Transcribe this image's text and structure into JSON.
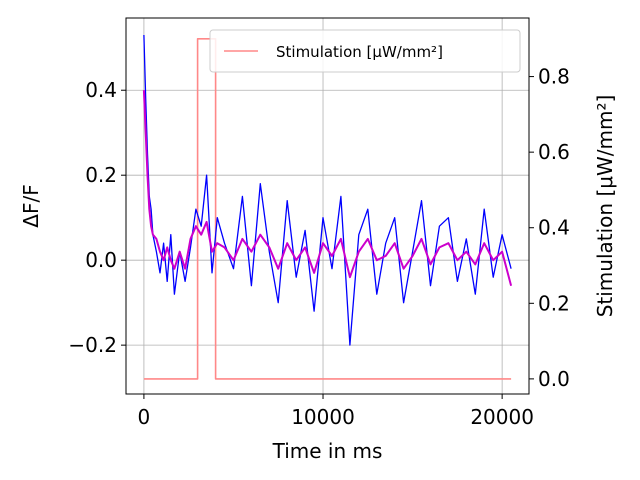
{
  "chart_data": {
    "type": "line",
    "xlabel": "Time in ms",
    "ylabel_left": "ΔF/F",
    "ylabel_right": "Stimulation [μW/mm²]",
    "xlim": [
      -1000,
      21500
    ],
    "ylim_left": [
      -0.315,
      0.57
    ],
    "ylim_right": [
      -0.04,
      0.955
    ],
    "x_ticks": [
      0,
      10000,
      20000
    ],
    "x_tick_labels": [
      "0",
      "10000",
      "20000"
    ],
    "y_left_ticks": [
      -0.2,
      0.0,
      0.2,
      0.4
    ],
    "y_left_tick_labels": [
      "−0.2",
      "0.0",
      "0.2",
      "0.4"
    ],
    "y_right_ticks": [
      0.0,
      0.2,
      0.4,
      0.6,
      0.8
    ],
    "y_right_tick_labels": [
      "0.0",
      "0.2",
      "0.4",
      "0.6",
      "0.8"
    ],
    "grid": true,
    "legend_position": "top-right",
    "series": [
      {
        "name": "",
        "axis": "left",
        "color": "#0000ff",
        "x": [
          0,
          100,
          200,
          300,
          400,
          500,
          700,
          900,
          1100,
          1300,
          1500,
          1700,
          2000,
          2300,
          2600,
          2900,
          3200,
          3500,
          3800,
          4100,
          4500,
          5000,
          5500,
          6000,
          6500,
          7000,
          7500,
          8000,
          8500,
          9000,
          9500,
          10000,
          10500,
          11000,
          11500,
          12000,
          12500,
          13000,
          13500,
          14000,
          14500,
          15000,
          15500,
          16000,
          16500,
          17000,
          17500,
          18000,
          18500,
          19000,
          19500,
          20000,
          20500
        ],
        "y": [
          0.53,
          0.38,
          0.25,
          0.15,
          0.12,
          0.06,
          0.02,
          -0.03,
          0.04,
          -0.05,
          0.06,
          -0.08,
          0.02,
          -0.05,
          0.03,
          0.12,
          0.08,
          0.2,
          -0.03,
          0.1,
          0.04,
          -0.02,
          0.15,
          -0.06,
          0.18,
          0.02,
          -0.1,
          0.14,
          -0.04,
          0.07,
          -0.12,
          0.1,
          -0.02,
          0.15,
          -0.2,
          0.06,
          0.12,
          -0.08,
          0.04,
          0.1,
          -0.1,
          0.02,
          0.14,
          -0.06,
          0.08,
          0.1,
          -0.05,
          0.05,
          -0.08,
          0.12,
          -0.04,
          0.06,
          -0.02
        ]
      },
      {
        "name": "",
        "axis": "left",
        "color": "#cc00cc",
        "x": [
          0,
          100,
          200,
          300,
          400,
          500,
          700,
          900,
          1100,
          1300,
          1500,
          1700,
          2000,
          2300,
          2600,
          2900,
          3200,
          3500,
          3800,
          4100,
          4500,
          5000,
          5500,
          6000,
          6500,
          7000,
          7500,
          8000,
          8500,
          9000,
          9500,
          10000,
          10500,
          11000,
          11500,
          12000,
          12500,
          13000,
          13500,
          14000,
          14500,
          15000,
          15500,
          16000,
          16500,
          17000,
          17500,
          18000,
          18500,
          19000,
          19500,
          20000,
          20500
        ],
        "y": [
          0.4,
          0.3,
          0.2,
          0.12,
          0.08,
          0.06,
          0.05,
          0.02,
          0.0,
          0.03,
          0.0,
          -0.02,
          0.02,
          -0.02,
          0.05,
          0.08,
          0.06,
          0.09,
          0.02,
          0.04,
          0.03,
          0.0,
          0.05,
          0.02,
          0.06,
          0.03,
          -0.02,
          0.04,
          0.0,
          0.03,
          -0.03,
          0.04,
          0.01,
          0.05,
          -0.04,
          0.02,
          0.05,
          0.0,
          0.01,
          0.04,
          -0.02,
          0.01,
          0.05,
          -0.01,
          0.03,
          0.04,
          0.0,
          0.02,
          -0.01,
          0.04,
          0.0,
          0.02,
          -0.06
        ]
      },
      {
        "name": "Stimulation [μW/mm²]",
        "axis": "right",
        "color": "#ff8888",
        "x": [
          0,
          3000,
          3000,
          4000,
          4000,
          20500
        ],
        "y": [
          0.0,
          0.0,
          0.9,
          0.9,
          0.0,
          0.0
        ]
      }
    ]
  }
}
